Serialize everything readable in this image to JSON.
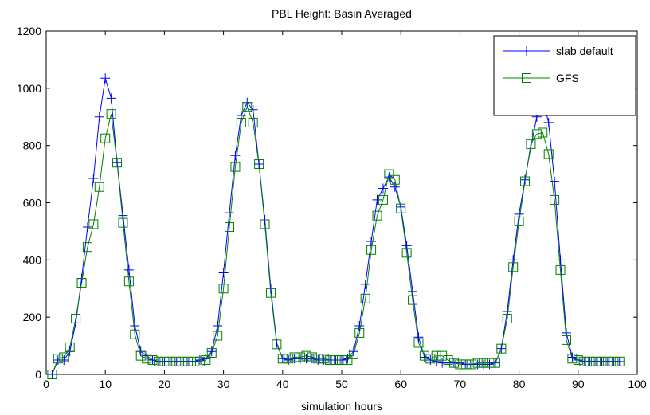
{
  "chart_data": {
    "type": "line",
    "title": "PBL Height: Basin Averaged",
    "xlabel": "simulation hours",
    "ylabel": "",
    "xlim": [
      0,
      100
    ],
    "ylim": [
      0,
      1200
    ],
    "xticks": [
      0,
      10,
      20,
      30,
      40,
      50,
      60,
      70,
      80,
      90,
      100
    ],
    "yticks": [
      0,
      200,
      400,
      600,
      800,
      1000,
      1200
    ],
    "grid": false,
    "legend_position": "top-right",
    "x": [
      1,
      2,
      3,
      4,
      5,
      6,
      7,
      8,
      9,
      10,
      11,
      12,
      13,
      14,
      15,
      16,
      17,
      18,
      19,
      20,
      21,
      22,
      23,
      24,
      25,
      26,
      27,
      28,
      29,
      30,
      31,
      32,
      33,
      34,
      35,
      36,
      37,
      38,
      39,
      40,
      41,
      42,
      43,
      44,
      45,
      46,
      47,
      48,
      49,
      50,
      51,
      52,
      53,
      54,
      55,
      56,
      57,
      58,
      59,
      60,
      61,
      62,
      63,
      64,
      65,
      66,
      67,
      68,
      69,
      70,
      71,
      72,
      73,
      74,
      75,
      76,
      77,
      78,
      79,
      80,
      81,
      82,
      83,
      84,
      85,
      86,
      87,
      88,
      89,
      90,
      91,
      92,
      93,
      94,
      95,
      96,
      97
    ],
    "series": [
      {
        "name": "slab default",
        "color": "#0000ff",
        "marker": "plus",
        "values": [
          0,
          50,
          50,
          80,
          180,
          335,
          515,
          685,
          900,
          1035,
          965,
          740,
          555,
          365,
          170,
          80,
          65,
          50,
          45,
          45,
          45,
          45,
          45,
          45,
          45,
          50,
          55,
          80,
          170,
          355,
          565,
          765,
          905,
          950,
          925,
          735,
          540,
          300,
          110,
          55,
          50,
          55,
          55,
          55,
          55,
          50,
          50,
          50,
          50,
          50,
          55,
          80,
          170,
          315,
          465,
          610,
          650,
          690,
          655,
          585,
          450,
          290,
          130,
          60,
          50,
          45,
          40,
          40,
          40,
          40,
          35,
          35,
          35,
          35,
          35,
          40,
          90,
          220,
          400,
          560,
          680,
          795,
          900,
          960,
          880,
          675,
          400,
          145,
          60,
          50,
          45,
          45,
          45,
          45,
          45,
          45,
          45
        ]
      },
      {
        "name": "GFS",
        "color": "#008000",
        "marker": "square",
        "values": [
          0,
          55,
          60,
          95,
          195,
          320,
          445,
          525,
          655,
          825,
          910,
          740,
          530,
          325,
          140,
          65,
          55,
          50,
          45,
          45,
          45,
          45,
          45,
          45,
          45,
          45,
          50,
          75,
          135,
          300,
          515,
          725,
          880,
          935,
          880,
          735,
          525,
          285,
          105,
          55,
          55,
          60,
          60,
          65,
          60,
          55,
          55,
          50,
          50,
          50,
          50,
          70,
          145,
          265,
          435,
          555,
          610,
          700,
          680,
          580,
          425,
          260,
          110,
          65,
          55,
          65,
          65,
          50,
          40,
          35,
          35,
          35,
          40,
          40,
          40,
          40,
          90,
          195,
          375,
          535,
          675,
          805,
          840,
          845,
          770,
          610,
          365,
          120,
          55,
          50,
          45,
          45,
          45,
          45,
          45,
          45,
          45
        ]
      }
    ]
  }
}
